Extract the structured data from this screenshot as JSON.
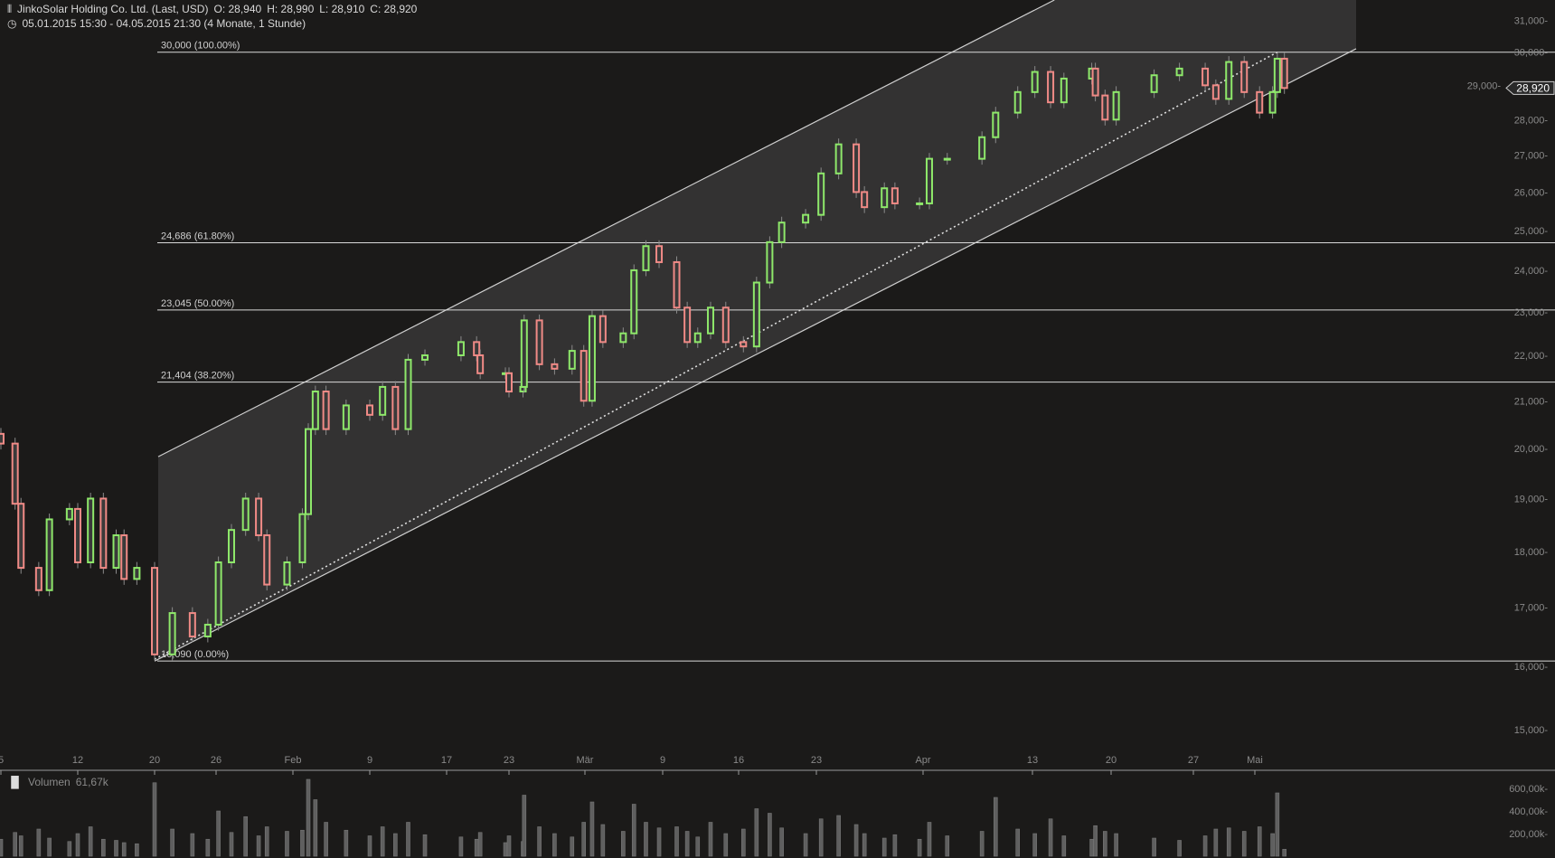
{
  "header": {
    "instrument": "JinkoSolar Holding Co. Ltd. (Last, USD)",
    "open": "O: 28,940",
    "high": "H: 28,990",
    "low": "L: 28,910",
    "close": "C: 28,920",
    "range": "05.01.2015 15:30 - 04.05.2015 21:30 (4 Monate, 1 Stunde)",
    "icon_instrument": "candlestick-icon",
    "icon_range": "clock-icon"
  },
  "volume_panel": {
    "label": "Volumen",
    "value": "61,67k",
    "icon": "bar-chart-icon"
  },
  "chart_data": {
    "type": "candlestick",
    "scale": "log",
    "ylim": [
      14500,
      31500
    ],
    "colors": {
      "up": "#8ee86a",
      "down": "#f08a86",
      "channel_fill": "#333232",
      "background": "#1b1a19"
    },
    "last_price": "28,920",
    "y_ticks": [
      "15,000",
      "16,000",
      "17,000",
      "18,000",
      "19,000",
      "20,000",
      "21,000",
      "22,000",
      "23,000",
      "24,000",
      "25,000",
      "26,000",
      "27,000",
      "28,000",
      "29,000",
      "30,000",
      "31,000"
    ],
    "x_ticks": [
      {
        "label": "5",
        "date": "2015-01-05"
      },
      {
        "label": "12",
        "date": "2015-01-12"
      },
      {
        "label": "20",
        "date": "2015-01-20"
      },
      {
        "label": "26",
        "date": "2015-01-26"
      },
      {
        "label": "Feb",
        "date": "2015-02-02"
      },
      {
        "label": "9",
        "date": "2015-02-09"
      },
      {
        "label": "17",
        "date": "2015-02-17"
      },
      {
        "label": "23",
        "date": "2015-02-23"
      },
      {
        "label": "Mär",
        "date": "2015-03-02"
      },
      {
        "label": "9",
        "date": "2015-03-09"
      },
      {
        "label": "16",
        "date": "2015-03-16"
      },
      {
        "label": "23",
        "date": "2015-03-23"
      },
      {
        "label": "Apr",
        "date": "2015-04-01"
      },
      {
        "label": "13",
        "date": "2015-04-13"
      },
      {
        "label": "20",
        "date": "2015-04-20"
      },
      {
        "label": "27",
        "date": "2015-04-27"
      },
      {
        "label": "Mai",
        "date": "2015-05-01"
      }
    ],
    "volume_ticks": [
      {
        "label": "200,00k",
        "value": 200000
      },
      {
        "label": "400,00k",
        "value": 400000
      },
      {
        "label": "600,00k",
        "value": 600000
      }
    ],
    "fibonacci": [
      {
        "label": "30,000 (100.00%)",
        "value": 30000
      },
      {
        "label": "24,686 (61.80%)",
        "value": 24686
      },
      {
        "label": "23,045 (50.00%)",
        "value": 23045
      },
      {
        "label": "21,404 (38.20%)",
        "value": 21404
      },
      {
        "label": "16,090 (0.00%)",
        "value": 16090
      }
    ],
    "channel": {
      "lower": [
        [
          "2015-01-20 15:30",
          16090
        ],
        [
          "2015-05-04 21:30",
          29000
        ]
      ],
      "mid": [
        [
          "2015-01-20 15:30",
          16120
        ],
        [
          "2015-05-04 18:30",
          30000
        ]
      ]
    },
    "series": [
      [
        "2015-01-05 15:30",
        20100,
        150000
      ],
      [
        "2015-01-05 21:30",
        18900,
        210000
      ],
      [
        "2015-01-06 17:30",
        17700,
        180000
      ],
      [
        "2015-01-07 18:30",
        17300,
        240000
      ],
      [
        "2015-01-08 16:30",
        18600,
        160000
      ],
      [
        "2015-01-09 18:30",
        18800,
        130000
      ],
      [
        "2015-01-12 15:30",
        17800,
        200000
      ],
      [
        "2015-01-13 15:30",
        19000,
        260000
      ],
      [
        "2015-01-14 15:30",
        17700,
        150000
      ],
      [
        "2015-01-15 15:30",
        18300,
        140000
      ],
      [
        "2015-01-15 19:30",
        17500,
        120000
      ],
      [
        "2015-01-16 19:30",
        17700,
        110000
      ],
      [
        "2015-01-20 15:30",
        16200,
        650000
      ],
      [
        "2015-01-21 16:30",
        16900,
        240000
      ],
      [
        "2015-01-22 18:30",
        16500,
        200000
      ],
      [
        "2015-01-23 18:30",
        16700,
        150000
      ],
      [
        "2015-01-26 16:30",
        17800,
        400000
      ],
      [
        "2015-01-27 15:30",
        18400,
        210000
      ],
      [
        "2015-01-27 21:30",
        19000,
        350000
      ],
      [
        "2015-01-28 20:30",
        18300,
        180000
      ],
      [
        "2015-01-29 17:30",
        17400,
        260000
      ],
      [
        "2015-01-30 19:30",
        17800,
        220000
      ],
      [
        "2015-02-02 19:30",
        18700,
        230000
      ],
      [
        "2015-02-03 15:30",
        20400,
        680000
      ],
      [
        "2015-02-03 18:30",
        21200,
        500000
      ],
      [
        "2015-02-04 16:30",
        20400,
        300000
      ],
      [
        "2015-02-05 18:30",
        20900,
        230000
      ],
      [
        "2015-02-09 15:30",
        20700,
        180000
      ],
      [
        "2015-02-10 15:30",
        21300,
        260000
      ],
      [
        "2015-02-11 15:30",
        20400,
        200000
      ],
      [
        "2015-02-12 15:30",
        21900,
        300000
      ],
      [
        "2015-02-13 17:30",
        22000,
        190000
      ],
      [
        "2015-02-17 21:30",
        22300,
        170000
      ],
      [
        "2015-02-18 21:30",
        22000,
        150000
      ],
      [
        "2015-02-19 16:30",
        21600,
        210000
      ],
      [
        "2015-02-20 20:30",
        21600,
        120000
      ],
      [
        "2015-02-23 15:30",
        21200,
        180000
      ],
      [
        "2015-02-23 21:30",
        21300,
        130000
      ],
      [
        "2015-02-24 15:30",
        22800,
        540000
      ],
      [
        "2015-02-25 15:30",
        21800,
        260000
      ],
      [
        "2015-02-26 15:30",
        21700,
        200000
      ],
      [
        "2015-02-27 16:30",
        22100,
        170000
      ],
      [
        "2015-02-27 21:30",
        21000,
        300000
      ],
      [
        "2015-03-02 18:30",
        22900,
        480000
      ],
      [
        "2015-03-03 16:30",
        22300,
        280000
      ],
      [
        "2015-03-04 18:30",
        22500,
        220000
      ],
      [
        "2015-03-05 16:30",
        24000,
        460000
      ],
      [
        "2015-03-05 21:30",
        24600,
        300000
      ],
      [
        "2015-03-06 20:30",
        24200,
        250000
      ],
      [
        "2015-03-09 21:30",
        23100,
        260000
      ],
      [
        "2015-03-10 19:30",
        22300,
        220000
      ],
      [
        "2015-03-11 17:30",
        22500,
        170000
      ],
      [
        "2015-03-12 16:30",
        23100,
        300000
      ],
      [
        "2015-03-13 16:30",
        22300,
        200000
      ],
      [
        "2015-03-16 17:30",
        22200,
        240000
      ],
      [
        "2015-03-17 16:30",
        23700,
        420000
      ],
      [
        "2015-03-18 15:30",
        24700,
        380000
      ],
      [
        "2015-03-18 20:30",
        25200,
        250000
      ],
      [
        "2015-03-20 17:30",
        25400,
        200000
      ],
      [
        "2015-03-23 17:30",
        26500,
        330000
      ],
      [
        "2015-03-24 18:30",
        27300,
        360000
      ],
      [
        "2015-03-25 19:30",
        26000,
        280000
      ],
      [
        "2015-03-26 16:30",
        25600,
        200000
      ],
      [
        "2015-03-27 18:30",
        26100,
        160000
      ],
      [
        "2015-03-30 16:30",
        25700,
        190000
      ],
      [
        "2015-03-31 20:30",
        25700,
        150000
      ],
      [
        "2015-04-01 18:30",
        26900,
        300000
      ],
      [
        "2015-04-02 20:30",
        26900,
        180000
      ],
      [
        "2015-04-07 17:30",
        27500,
        220000
      ],
      [
        "2015-04-08 17:30",
        28200,
        520000
      ],
      [
        "2015-04-09 21:30",
        28800,
        240000
      ],
      [
        "2015-04-13 16:30",
        29400,
        200000
      ],
      [
        "2015-04-14 16:30",
        28500,
        330000
      ],
      [
        "2015-04-15 15:30",
        29200,
        180000
      ],
      [
        "2015-04-16 20:30",
        29500,
        150000
      ],
      [
        "2015-04-17 15:30",
        28700,
        270000
      ],
      [
        "2015-04-17 19:30",
        28000,
        220000
      ],
      [
        "2015-04-20 17:30",
        28800,
        200000
      ],
      [
        "2015-04-22 19:30",
        29300,
        160000
      ],
      [
        "2015-04-24 16:30",
        29500,
        140000
      ],
      [
        "2015-04-27 20:30",
        29000,
        180000
      ],
      [
        "2015-04-28 18:30",
        28600,
        240000
      ],
      [
        "2015-04-29 17:30",
        29700,
        250000
      ],
      [
        "2015-04-30 17:30",
        28800,
        220000
      ],
      [
        "2015-05-01 17:30",
        28200,
        260000
      ],
      [
        "2015-05-04 16:30",
        28800,
        200000
      ],
      [
        "2015-05-04 18:30",
        29800,
        560000
      ],
      [
        "2015-05-04 21:30",
        28920,
        61670
      ]
    ]
  }
}
